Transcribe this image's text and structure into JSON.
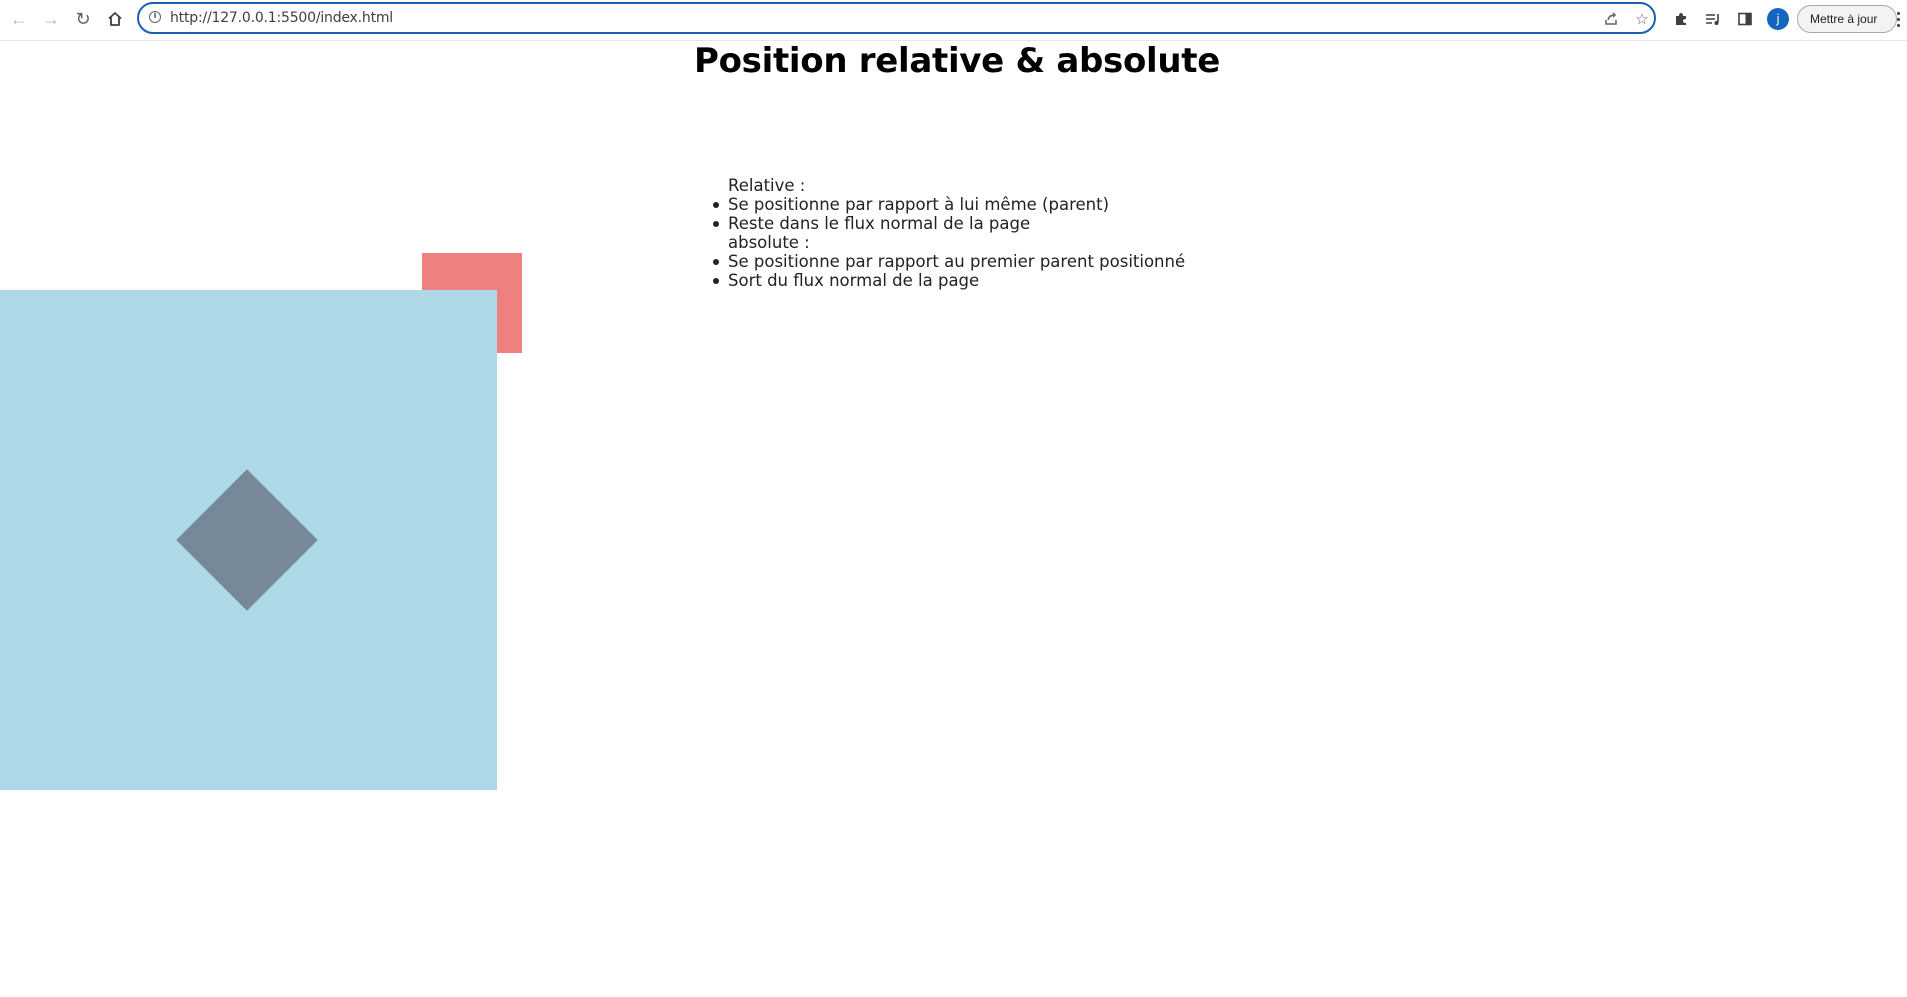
{
  "browser": {
    "url": "http://127.0.0.1:5500/index.html",
    "update_label": "Mettre à jour",
    "profile_initial": "j"
  },
  "icons": {
    "back": "arrow-left-icon",
    "forward": "arrow-right-icon",
    "reload": "reload-icon",
    "home": "home-icon",
    "site_info": "info-icon",
    "share": "share-icon",
    "bookmark": "star-icon",
    "extensions": "puzzle-icon",
    "reading_list": "reading-list-icon",
    "side_panel": "side-panel-icon",
    "menu": "kebab-menu-icon"
  },
  "page": {
    "title": "Position relative & absolute",
    "relative_heading": "Relative :",
    "relative_items": [
      "Se positionne par rapport à lui même (parent)",
      "Reste dans le flux normal de la page"
    ],
    "absolute_heading": "absolute :",
    "absolute_items": [
      "Se positionne par rapport au premier parent positionné",
      "Sort du flux normal de la page"
    ]
  },
  "colors": {
    "red_square": "#f08080",
    "blue_box": "#add8e6",
    "diamond": "#778899",
    "omnibox_focus": "#1a5fb4"
  }
}
